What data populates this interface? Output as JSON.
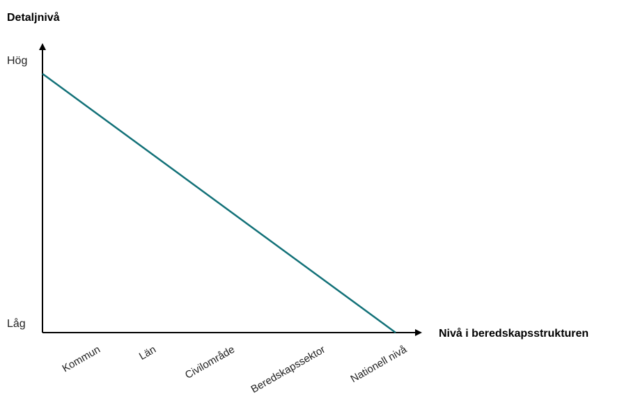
{
  "chart_data": {
    "type": "line",
    "ylabel": "Detaljnivå",
    "xlabel": "Nivå i beredskapsstrukturen",
    "y_ticks": [
      "Hög",
      "Låg"
    ],
    "categories": [
      "Kommun",
      "Län",
      "Civilområde",
      "Beredskapssektor",
      "Nationell nivå"
    ],
    "series": [
      {
        "x": [
          0,
          1
        ],
        "y": [
          1,
          0
        ]
      }
    ],
    "grid": false,
    "colors": {
      "line": "#127178",
      "axis": "#000000"
    }
  }
}
